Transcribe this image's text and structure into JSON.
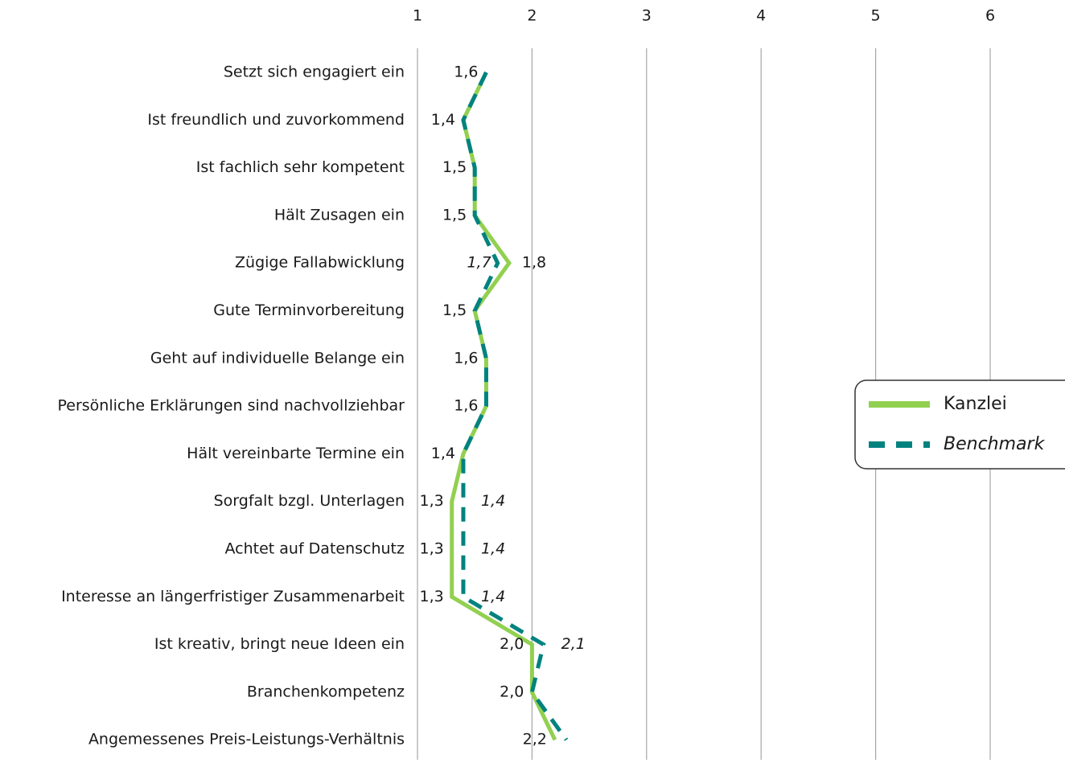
{
  "chart_data": {
    "type": "line",
    "orientation": "horizontal",
    "categories": [
      "Setzt sich engagiert ein",
      "Ist freundlich und zuvorkommend",
      "Ist fachlich sehr kompetent",
      "Hält Zusagen ein",
      "Zügige Fallabwicklung",
      "Gute Terminvorbereitung",
      "Geht auf individuelle Belange ein",
      "Persönliche Erklärungen sind nachvollziehbar",
      "Hält vereinbarte Termine ein",
      "Sorgfalt bzgl. Unterlagen",
      "Achtet auf Datenschutz",
      "Interesse an längerfristiger Zusammenarbeit",
      "Ist kreativ, bringt neue Ideen ein",
      "Branchenkompetenz",
      "Angemessenes Preis-Leistungs-Verhältnis"
    ],
    "series": [
      {
        "name": "Kanzlei",
        "color": "#92d050",
        "values": [
          1.6,
          1.4,
          1.5,
          1.5,
          1.8,
          1.5,
          1.6,
          1.6,
          1.4,
          1.3,
          1.3,
          1.3,
          2.0,
          2.0,
          2.2
        ],
        "value_labels": [
          "1,6",
          "1,4",
          "1,5",
          "1,5",
          "1,8",
          "1,5",
          "1,6",
          "1,6",
          "1,4",
          "1,3",
          "1,3",
          "1,3",
          "2,0",
          "2,0",
          "2,2"
        ]
      },
      {
        "name": "Benchmark",
        "color": "#00827f",
        "values": [
          1.6,
          1.4,
          1.5,
          1.5,
          1.7,
          1.5,
          1.6,
          1.6,
          1.4,
          1.4,
          1.4,
          1.4,
          2.1,
          2.0,
          2.3
        ],
        "value_labels": [
          null,
          null,
          null,
          null,
          "1,7",
          null,
          null,
          null,
          null,
          "1,4",
          "1,4",
          "1,4",
          "2,1",
          null,
          null
        ]
      }
    ],
    "xlim": [
      1,
      6
    ],
    "xticks": [
      1,
      2,
      3,
      4,
      5,
      6
    ],
    "grid": true,
    "legend": "right"
  }
}
